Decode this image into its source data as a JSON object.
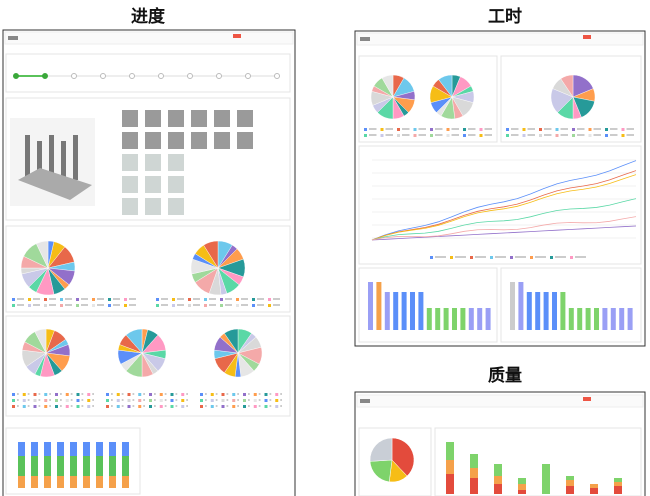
{
  "panels": [
    {
      "title": "进度"
    },
    {
      "title": "工时"
    },
    {
      "title": "质量"
    }
  ]
}
